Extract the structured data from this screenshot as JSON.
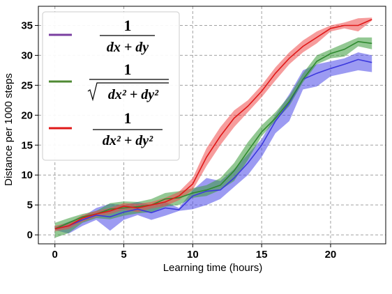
{
  "chart_data": {
    "type": "line",
    "xlabel": "Learning time (hours)",
    "ylabel": "Distance per 1000 steps",
    "xlim": [
      -1.2,
      24.0
    ],
    "ylim": [
      -1.5,
      38.2
    ],
    "xticks": [
      0,
      5,
      10,
      15,
      20
    ],
    "xtick_labels": [
      "0",
      "5",
      "10",
      "15",
      "20"
    ],
    "yticks": [
      0,
      5,
      10,
      15,
      20,
      25,
      30,
      35
    ],
    "ytick_labels": [
      "0",
      "5",
      "10",
      "15",
      "20",
      "25",
      "30",
      "35"
    ],
    "grid": true,
    "grid_style": "dashed",
    "legend": "top-left",
    "x": [
      0,
      1,
      2,
      3,
      4,
      5,
      6,
      7,
      8,
      9,
      10,
      11,
      12,
      13,
      14,
      15,
      16,
      17,
      18,
      19,
      20,
      21,
      22,
      23
    ],
    "series": [
      {
        "name": "1/(dx+dy)",
        "color": "#4b49e8",
        "line_color": "#3b38dd",
        "legend_color": "#7a3fa0",
        "mean": [
          1.0,
          1.5,
          2.5,
          3.3,
          3.0,
          3.8,
          4.3,
          3.7,
          4.5,
          4.2,
          6.5,
          7.3,
          7.5,
          9.5,
          12.0,
          15.0,
          19.0,
          22.0,
          26.0,
          27.0,
          27.8,
          28.5,
          29.3,
          28.8
        ],
        "lower": [
          0.8,
          0.2,
          1.5,
          2.5,
          0.7,
          2.5,
          3.3,
          2.5,
          3.2,
          4.0,
          4.3,
          5.0,
          6.0,
          8.0,
          10.0,
          13.0,
          17.0,
          19.0,
          24.3,
          24.8,
          26.5,
          27.0,
          27.5,
          27.2
        ],
        "upper": [
          1.3,
          2.2,
          3.0,
          4.5,
          5.2,
          5.0,
          5.5,
          5.0,
          5.5,
          4.5,
          7.5,
          9.5,
          9.0,
          11.0,
          13.5,
          16.0,
          20.0,
          23.5,
          27.5,
          28.5,
          29.0,
          29.5,
          30.5,
          30.0
        ]
      },
      {
        "name": "1/sqrt(dx^2+dy^2)",
        "color": "#3a9a3a",
        "line_color": "#2f8a2f",
        "legend_color": "#4f8a33",
        "mean": [
          1.0,
          2.0,
          3.0,
          3.5,
          4.3,
          4.5,
          4.7,
          5.0,
          6.0,
          6.2,
          7.0,
          7.5,
          8.3,
          10.7,
          14.0,
          17.2,
          19.5,
          22.3,
          26.0,
          29.0,
          30.3,
          31.0,
          32.3,
          32.0
        ],
        "lower": [
          -0.5,
          0.3,
          2.0,
          2.8,
          2.6,
          3.2,
          3.6,
          3.8,
          4.7,
          5.0,
          6.2,
          6.5,
          7.5,
          9.0,
          12.5,
          16.5,
          19.0,
          21.5,
          25.5,
          28.5,
          29.5,
          29.8,
          31.5,
          31.0
        ],
        "upper": [
          2.0,
          2.8,
          3.5,
          4.0,
          5.3,
          5.6,
          5.5,
          6.0,
          7.0,
          7.3,
          7.8,
          8.3,
          9.5,
          12.0,
          15.5,
          18.3,
          20.5,
          23.2,
          27.0,
          30.0,
          31.0,
          32.0,
          33.0,
          33.0
        ]
      },
      {
        "name": "1/(dx^2+dy^2)",
        "color": "#ee4a4a",
        "line_color": "#e01818",
        "legend_color": "#e01818",
        "mean": [
          1.0,
          1.5,
          2.8,
          3.5,
          4.0,
          4.8,
          4.5,
          5.0,
          5.5,
          6.5,
          8.5,
          13.0,
          16.5,
          19.5,
          21.5,
          24.0,
          27.0,
          29.5,
          31.5,
          33.0,
          34.5,
          35.0,
          35.0,
          36.0
        ],
        "lower": [
          0.6,
          1.0,
          2.2,
          3.0,
          3.5,
          4.2,
          3.8,
          4.4,
          4.8,
          5.8,
          7.5,
          11.5,
          15.0,
          18.0,
          20.5,
          23.0,
          25.8,
          28.5,
          30.5,
          32.0,
          34.0,
          34.5,
          34.0,
          35.8
        ],
        "upper": [
          1.5,
          2.0,
          3.3,
          4.0,
          4.5,
          5.3,
          5.2,
          5.5,
          6.2,
          7.2,
          9.5,
          14.5,
          18.0,
          20.8,
          22.5,
          25.0,
          28.0,
          30.5,
          32.5,
          34.0,
          35.0,
          35.5,
          36.2,
          36.3
        ]
      }
    ]
  }
}
